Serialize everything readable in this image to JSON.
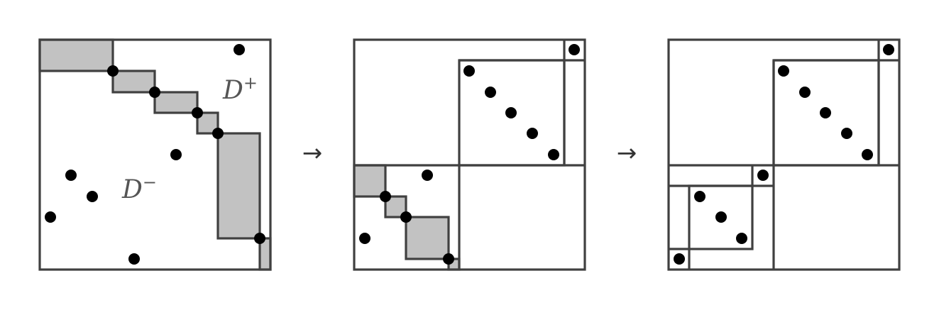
{
  "labels": {
    "d_plus": "D",
    "d_plus_sup": "+",
    "d_minus": "D",
    "d_minus_sup": "−"
  },
  "arrows": {
    "first": "→",
    "second": "→"
  },
  "colors": {
    "stroke": "#404040",
    "shade": "#c2c2c2",
    "dot": "#000000",
    "label": "#555555"
  }
}
